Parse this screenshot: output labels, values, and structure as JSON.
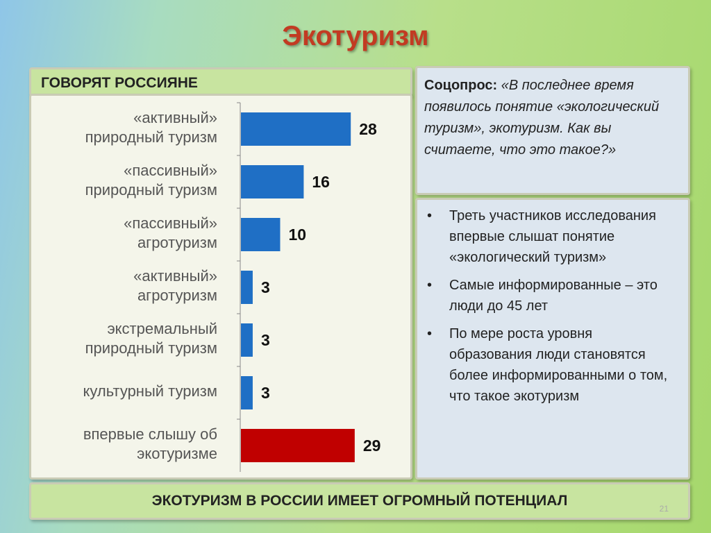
{
  "title": "Экотуризм",
  "chart_data": {
    "type": "barh",
    "title": "ГОВОРЯТ РОССИЯНЕ",
    "categories": [
      "«активный»\nприродный туризм",
      "«пассивный»\nприродный туризм",
      "«пассивный»\nагротуризм",
      "«активный»\nагротуризм",
      "экстремальный\nприродный туризм",
      "культурный туризм",
      "впервые слышу об\nэкотуризме"
    ],
    "values": [
      28,
      16,
      10,
      3,
      3,
      3,
      29
    ],
    "colors": [
      "#1f6fc5",
      "#1f6fc5",
      "#1f6fc5",
      "#1f6fc5",
      "#1f6fc5",
      "#1f6fc5",
      "#c00000"
    ]
  },
  "survey": {
    "label": "Соцопрос:",
    "question": "«В последнее время появилось понятие «экологический туризм», экотуризм. Как вы считаете, что это такое?»"
  },
  "bullets": [
    "Треть участников исследования впервые слышат понятие «экологический туризм»",
    "Самые информированные – это люди до 45 лет",
    "По мере роста уровня образования люди становятся более информированными о том, что такое экотуризм"
  ],
  "footer": "ЭКОТУРИЗМ В РОССИИ ИМЕЕТ ОГРОМНЫЙ ПОТЕНЦИАЛ",
  "page_number": "21"
}
